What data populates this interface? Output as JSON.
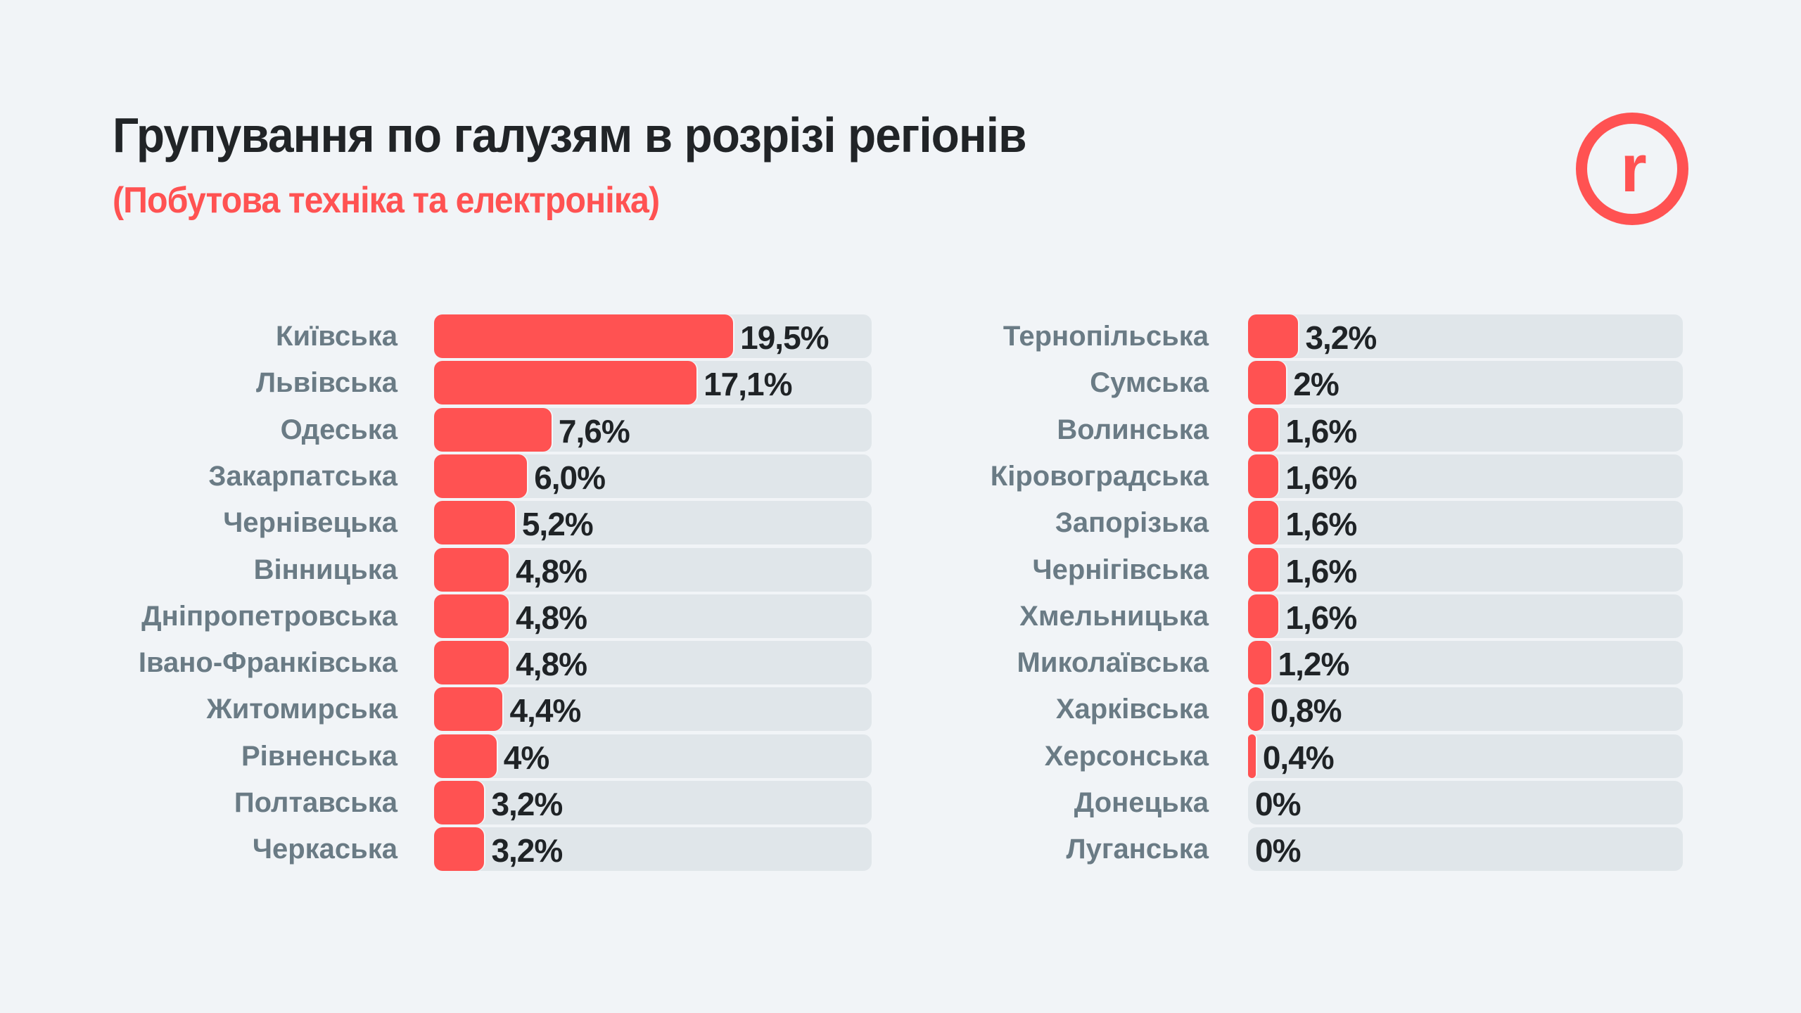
{
  "header": {
    "title": "Групування по галузям в розрізі регіонів",
    "subtitle": "(Побутова техніка та електроніка)",
    "logo_icon": "r-circle-logo-icon",
    "logo_letter": "r"
  },
  "colors": {
    "accent": "#ff5252",
    "track": "#e0e6ea",
    "background": "#f1f4f7",
    "label": "#6a7b85",
    "value": "#1f2326",
    "title": "#212427"
  },
  "chart_data": {
    "type": "bar",
    "orientation": "horizontal",
    "title": "Групування по галузям в розрізі регіонів",
    "subtitle": "(Побутова техніка та електроніка)",
    "unit": "%",
    "xlim": [
      0,
      28.7
    ],
    "grid": false,
    "legend": "none",
    "columns": [
      {
        "categories": [
          "Київська",
          "Львівська",
          "Одеська",
          "Закарпатська",
          "Чернівецька",
          "Вінницька",
          "Дніпропетровська",
          "Івано-Франківська",
          "Житомирська",
          "Рівненська",
          "Полтавська",
          "Черкаська"
        ],
        "values": [
          19.5,
          17.1,
          7.6,
          6.0,
          5.2,
          4.8,
          4.8,
          4.8,
          4.4,
          4,
          3.2,
          3.2
        ],
        "labels": [
          "19,5%",
          "17,1%",
          "7,6%",
          "6,0%",
          "5,2%",
          "4,8%",
          "4,8%",
          "4,8%",
          "4,4%",
          "4%",
          "3,2%",
          "3,2%"
        ]
      },
      {
        "categories": [
          "Тернопільська",
          "Сумська",
          "Волинська",
          "Кіровоградська",
          "Запорізька",
          "Чернігівська",
          "Хмельницька",
          "Миколаївська",
          "Харківська",
          "Херсонська",
          "Донецька",
          "Луганська"
        ],
        "values": [
          3.2,
          2,
          1.6,
          1.6,
          1.6,
          1.6,
          1.6,
          1.2,
          0.8,
          0.4,
          0,
          0
        ],
        "labels": [
          "3,2%",
          "2%",
          "1,6%",
          "1,6%",
          "1,6%",
          "1,6%",
          "1,6%",
          "1,2%",
          "0,8%",
          "0,4%",
          "0%",
          "0%"
        ]
      }
    ]
  }
}
